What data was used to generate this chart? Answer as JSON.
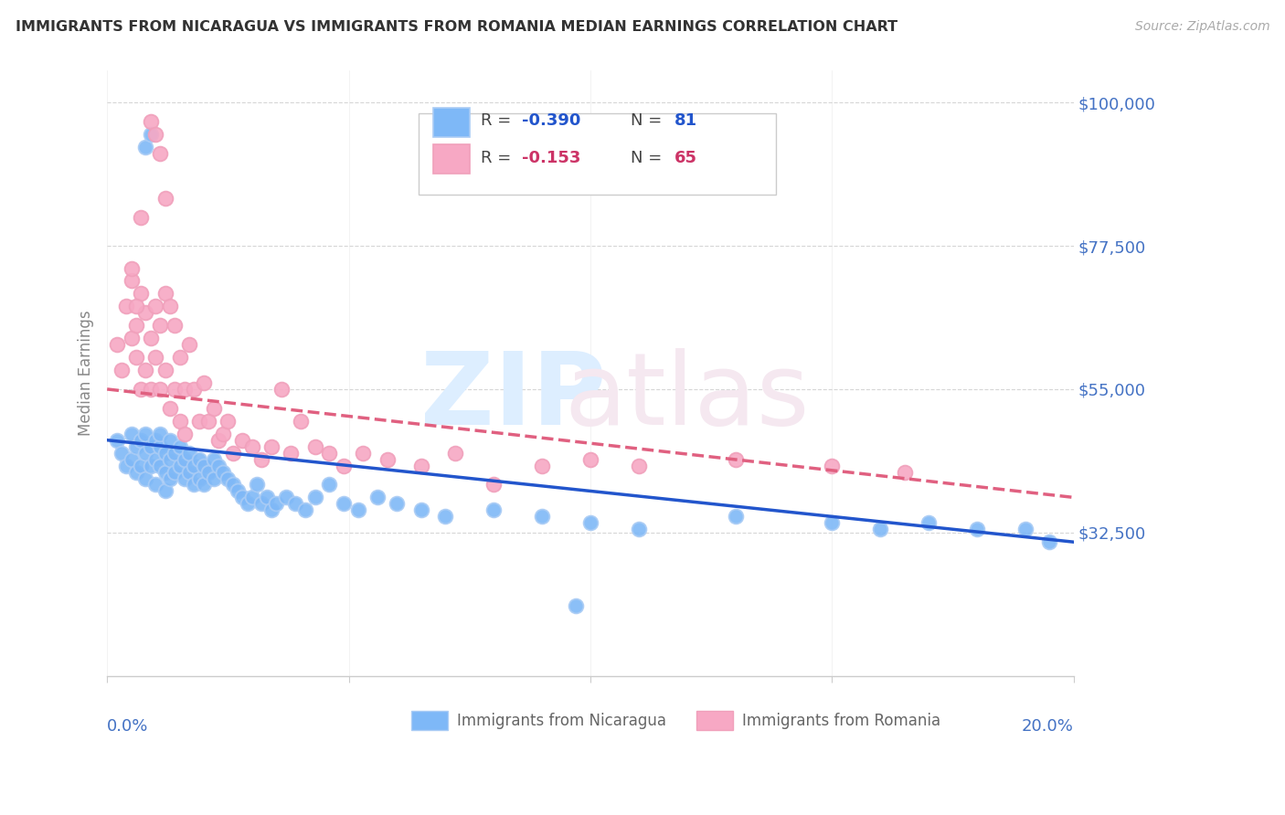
{
  "title": "IMMIGRANTS FROM NICARAGUA VS IMMIGRANTS FROM ROMANIA MEDIAN EARNINGS CORRELATION CHART",
  "source": "Source: ZipAtlas.com",
  "ylabel": "Median Earnings",
  "ytick_vals": [
    32500,
    55000,
    77500,
    100000
  ],
  "ytick_labels": [
    "$32,500",
    "$55,000",
    "$77,500",
    "$100,000"
  ],
  "xlim": [
    0.0,
    0.2
  ],
  "ylim": [
    10000,
    105000
  ],
  "legend_r1": "R = -0.390",
  "legend_n1": "N = 81",
  "legend_r2": "R = -0.153",
  "legend_n2": "N = 65",
  "color_nicaragua": "#7eb8f7",
  "color_romania": "#f7a8c4",
  "color_nic_edge": "#aaccf5",
  "color_rom_edge": "#f0a0bb",
  "color_nic_line": "#2255cc",
  "color_rom_line": "#e06080",
  "nicaragua_x": [
    0.002,
    0.003,
    0.004,
    0.005,
    0.005,
    0.006,
    0.006,
    0.007,
    0.007,
    0.008,
    0.008,
    0.008,
    0.009,
    0.009,
    0.01,
    0.01,
    0.01,
    0.011,
    0.011,
    0.011,
    0.012,
    0.012,
    0.012,
    0.013,
    0.013,
    0.013,
    0.014,
    0.014,
    0.015,
    0.015,
    0.016,
    0.016,
    0.017,
    0.017,
    0.018,
    0.018,
    0.019,
    0.019,
    0.02,
    0.02,
    0.021,
    0.022,
    0.022,
    0.023,
    0.024,
    0.025,
    0.026,
    0.027,
    0.028,
    0.029,
    0.03,
    0.031,
    0.032,
    0.033,
    0.034,
    0.035,
    0.037,
    0.039,
    0.041,
    0.043,
    0.046,
    0.049,
    0.052,
    0.056,
    0.06,
    0.065,
    0.07,
    0.08,
    0.09,
    0.1,
    0.11,
    0.13,
    0.15,
    0.16,
    0.17,
    0.18,
    0.19,
    0.195,
    0.008,
    0.009,
    0.097
  ],
  "nicaragua_y": [
    47000,
    45000,
    43000,
    48000,
    44000,
    46000,
    42000,
    47000,
    43000,
    48000,
    45000,
    41000,
    46000,
    43000,
    47000,
    44000,
    40000,
    46000,
    43000,
    48000,
    45000,
    42000,
    39000,
    47000,
    44000,
    41000,
    45000,
    42000,
    46000,
    43000,
    44000,
    41000,
    45000,
    42000,
    43000,
    40000,
    44000,
    41000,
    43000,
    40000,
    42000,
    44000,
    41000,
    43000,
    42000,
    41000,
    40000,
    39000,
    38000,
    37000,
    38000,
    40000,
    37000,
    38000,
    36000,
    37000,
    38000,
    37000,
    36000,
    38000,
    40000,
    37000,
    36000,
    38000,
    37000,
    36000,
    35000,
    36000,
    35000,
    34000,
    33000,
    35000,
    34000,
    33000,
    34000,
    33000,
    33000,
    31000,
    93000,
    95000,
    21000
  ],
  "romania_x": [
    0.002,
    0.003,
    0.004,
    0.005,
    0.005,
    0.006,
    0.006,
    0.007,
    0.007,
    0.008,
    0.008,
    0.009,
    0.009,
    0.01,
    0.01,
    0.011,
    0.011,
    0.012,
    0.012,
    0.013,
    0.013,
    0.014,
    0.014,
    0.015,
    0.015,
    0.016,
    0.016,
    0.017,
    0.018,
    0.019,
    0.02,
    0.021,
    0.022,
    0.023,
    0.024,
    0.025,
    0.026,
    0.028,
    0.03,
    0.032,
    0.034,
    0.036,
    0.038,
    0.04,
    0.043,
    0.046,
    0.049,
    0.053,
    0.058,
    0.065,
    0.072,
    0.08,
    0.09,
    0.1,
    0.11,
    0.13,
    0.15,
    0.165,
    0.009,
    0.01,
    0.011,
    0.012,
    0.007,
    0.005,
    0.006
  ],
  "romania_y": [
    62000,
    58000,
    68000,
    63000,
    72000,
    65000,
    60000,
    70000,
    55000,
    67000,
    58000,
    63000,
    55000,
    68000,
    60000,
    65000,
    55000,
    70000,
    58000,
    68000,
    52000,
    65000,
    55000,
    60000,
    50000,
    55000,
    48000,
    62000,
    55000,
    50000,
    56000,
    50000,
    52000,
    47000,
    48000,
    50000,
    45000,
    47000,
    46000,
    44000,
    46000,
    55000,
    45000,
    50000,
    46000,
    45000,
    43000,
    45000,
    44000,
    43000,
    45000,
    40000,
    43000,
    44000,
    43000,
    44000,
    43000,
    42000,
    97000,
    95000,
    92000,
    85000,
    82000,
    74000,
    68000
  ]
}
